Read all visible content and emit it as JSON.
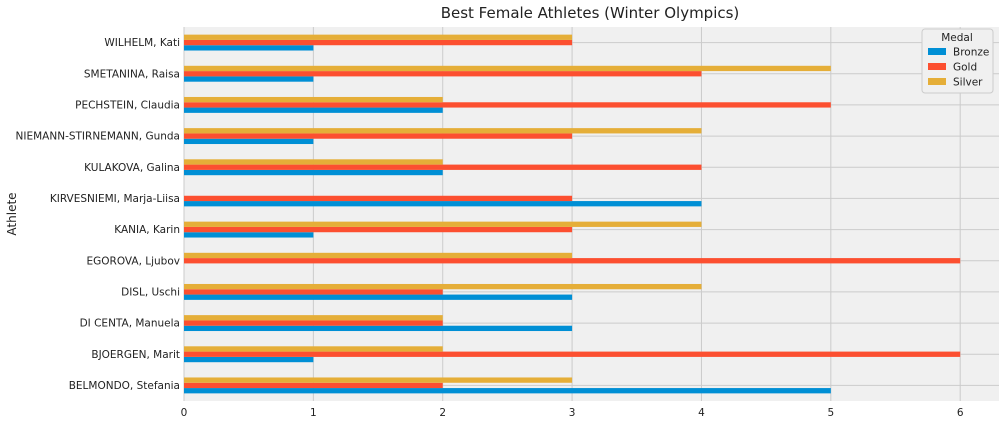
{
  "chart_data": {
    "type": "bar",
    "orientation": "horizontal",
    "title": "Best Female Athletes (Winter Olympics)",
    "ylabel": "Athlete",
    "xlabel": "",
    "xlim": [
      0,
      6.3
    ],
    "x_ticks": [
      "0",
      "1",
      "2",
      "3",
      "4",
      "5",
      "6"
    ],
    "grid": true,
    "legend": {
      "title": "Medal",
      "placement": "top-right"
    },
    "categories": [
      "BELMONDO, Stefania",
      "BJOERGEN, Marit",
      "DI CENTA, Manuela",
      "DISL, Uschi",
      "EGOROVA, Ljubov",
      "KANIA, Karin",
      "KIRVESNIEMI, Marja-Liisa",
      "KULAKOVA, Galina",
      "NIEMANN-STIRNEMANN, Gunda",
      "PECHSTEIN, Claudia",
      "SMETANINA, Raisa",
      "WILHELM, Kati"
    ],
    "series": [
      {
        "name": "Bronze",
        "color": "#008fd5",
        "values": [
          5,
          1,
          3,
          3,
          0,
          1,
          4,
          2,
          1,
          2,
          1,
          1
        ]
      },
      {
        "name": "Gold",
        "color": "#fc4f30",
        "values": [
          2,
          6,
          2,
          2,
          6,
          3,
          3,
          4,
          3,
          5,
          4,
          3
        ]
      },
      {
        "name": "Silver",
        "color": "#e5ae38",
        "values": [
          3,
          2,
          2,
          4,
          3,
          4,
          0,
          2,
          4,
          2,
          5,
          3
        ]
      }
    ]
  }
}
